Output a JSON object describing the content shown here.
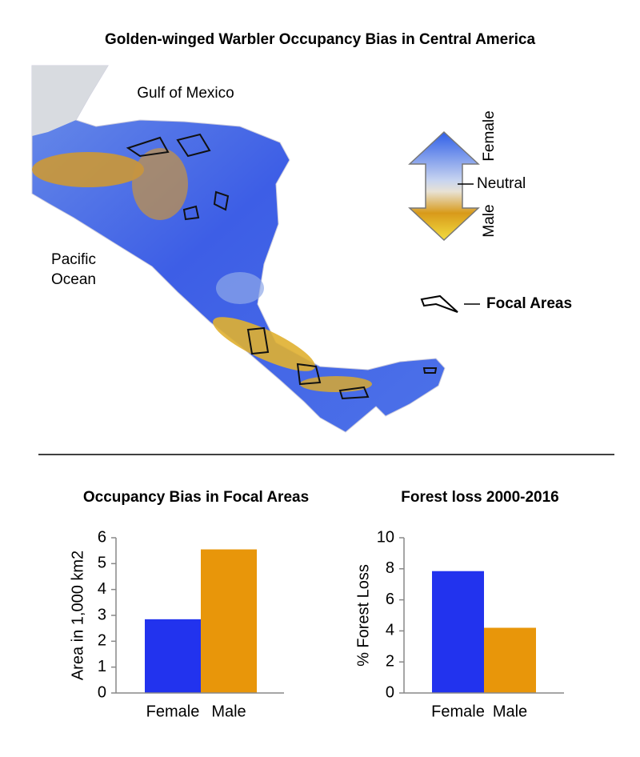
{
  "header": {
    "title": "Golden-winged Warbler Occupancy Bias in Central America"
  },
  "map": {
    "labels": [
      "Gulf of Mexico",
      "Pacific",
      "Ocean"
    ],
    "legend": {
      "top": "Female",
      "middle": "Neutral",
      "bottom": "Male",
      "focal": "Focal Areas"
    }
  },
  "chart_data": [
    {
      "type": "bar",
      "title": "Occupancy Bias in Focal Areas",
      "y_label": "Area in 1,000 km2",
      "categories": [
        "Female",
        "Male"
      ],
      "values": [
        2.85,
        5.55
      ],
      "colors": [
        "#2233ee",
        "#e8960a"
      ],
      "ylim": [
        0,
        6
      ],
      "yticks": [
        0,
        1,
        2,
        3,
        4,
        5,
        6
      ]
    },
    {
      "type": "bar",
      "title": "Forest loss 2000-2016",
      "y_label": "% Forest Loss",
      "categories": [
        "Female",
        "Male"
      ],
      "values": [
        7.85,
        4.2
      ],
      "colors": [
        "#2233ee",
        "#e8960a"
      ],
      "ylim": [
        0,
        10
      ],
      "yticks": [
        0,
        2,
        4,
        6,
        8,
        10
      ]
    }
  ]
}
